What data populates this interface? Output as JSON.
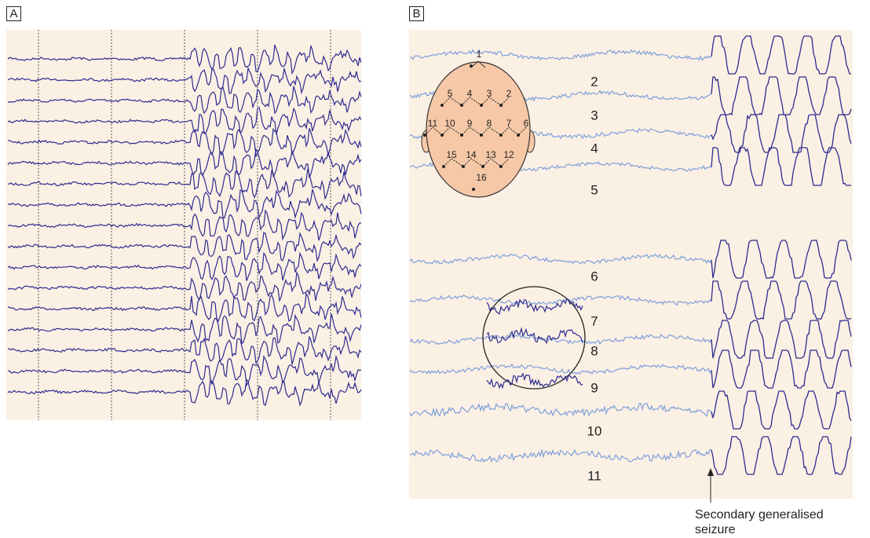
{
  "panels": [
    {
      "label": "A"
    },
    {
      "label": "B",
      "channel_labels": [
        "2",
        "3",
        "4",
        "5",
        "6",
        "7",
        "8",
        "9",
        "10",
        "11"
      ],
      "head_electrodes": [
        "1",
        "2",
        "3",
        "4",
        "5",
        "6",
        "7",
        "8",
        "9",
        "10",
        "11",
        "12",
        "13",
        "14",
        "15",
        "16"
      ],
      "annotation": [
        "Secondary generalised",
        "seizure"
      ]
    }
  ]
}
